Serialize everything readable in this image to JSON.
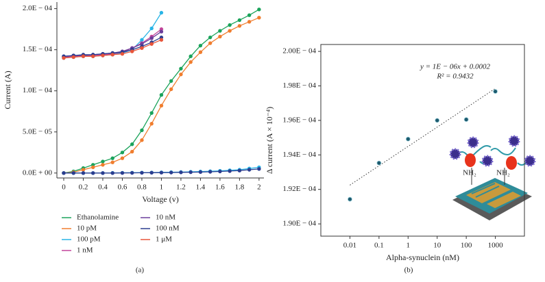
{
  "chart_data": [
    {
      "type": "line",
      "panel_label": "(a)",
      "x_label": "Voltage (v)",
      "y_label": "Current (A)",
      "x": [
        0,
        0.1,
        0.2,
        0.3,
        0.4,
        0.5,
        0.6,
        0.7,
        0.8,
        0.9,
        1.0,
        1.1,
        1.2,
        1.3,
        1.4,
        1.5,
        1.6,
        1.7,
        1.8,
        1.9,
        2.0
      ],
      "xlim": [
        -0.07,
        2.05
      ],
      "xticks": [
        0,
        0.2,
        0.4,
        0.6,
        0.8,
        1,
        1.2,
        1.4,
        1.6,
        1.8,
        2
      ],
      "ylim": [
        -6e-06,
        0.000208
      ],
      "yticks": [
        {
          "value": 0,
          "label": "0.0E + 00"
        },
        {
          "value": 5e-05,
          "label": "5.0E − 05"
        },
        {
          "value": 0.0001,
          "label": "1.0E − 04"
        },
        {
          "value": 0.00015,
          "label": "1.5E − 04"
        },
        {
          "value": 0.0002,
          "label": "2.0E − 04"
        }
      ],
      "series": [
        {
          "name": "Ethanolamine",
          "color": "#1aa35a",
          "values": [
            0,
            2e-06,
            6e-06,
            1e-05,
            1.4e-05,
            1.8e-05,
            2.5e-05,
            3.5e-05,
            5.2e-05,
            7.3e-05,
            9.5e-05,
            0.000112,
            0.000127,
            0.000142,
            0.000155,
            0.000165,
            0.000173,
            0.00018,
            0.000186,
            0.000192,
            0.000199
          ]
        },
        {
          "name": "10 pM",
          "color": "#f07d2e",
          "values": [
            0,
            1e-06,
            4e-06,
            7e-06,
            1e-05,
            1.3e-05,
            1.8e-05,
            2.6e-05,
            4e-05,
            6e-05,
            8.2e-05,
            0.000102,
            0.00012,
            0.000135,
            0.000147,
            0.000158,
            0.000166,
            0.000173,
            0.000179,
            0.000184,
            0.000189
          ]
        },
        {
          "name": "100 pM",
          "color": "#28b4e6",
          "values": [
            0.00014,
            0.000141,
            0.000142,
            0.000142,
            0.000143,
            0.000144,
            0.000146,
            0.00015,
            0.000162,
            0.000176,
            0.000195,
            null,
            null,
            null,
            null,
            null,
            null,
            null,
            null,
            null,
            null
          ]
        },
        {
          "name": "1 nM",
          "color": "#c2449a",
          "values": [
            0.000141,
            0.000142,
            0.000143,
            0.000143,
            0.000144,
            0.000145,
            0.000147,
            0.000152,
            0.000158,
            0.000166,
            0.000175,
            null,
            null,
            null,
            null,
            null,
            null,
            null,
            null,
            null,
            null
          ]
        },
        {
          "name": "10 nM",
          "color": "#6a3d9a",
          "values": [
            0.000142,
            0.000143,
            0.000143,
            0.000144,
            0.000145,
            0.000146,
            0.000148,
            0.000152,
            0.000157,
            0.000164,
            0.000172,
            null,
            null,
            null,
            null,
            null,
            null,
            null,
            null,
            null,
            null
          ]
        },
        {
          "name": "100 nM",
          "color": "#2b3d8f",
          "values": [
            0.000142,
            0.000143,
            0.000144,
            0.000144,
            0.000145,
            0.000146,
            0.000147,
            0.00015,
            0.000154,
            0.000159,
            0.000165,
            null,
            null,
            null,
            null,
            null,
            null,
            null,
            null,
            null,
            null
          ]
        },
        {
          "name": "1 μM",
          "color": "#e8553a",
          "values": [
            0.00014,
            0.000141,
            0.000142,
            0.000142,
            0.000143,
            0.000144,
            0.000145,
            0.000148,
            0.000152,
            0.000157,
            0.000162,
            null,
            null,
            null,
            null,
            null,
            null,
            null,
            null,
            null,
            null
          ]
        },
        {
          "color": "#28b4e6",
          "values": [
            0,
            0,
            0,
            0,
            0,
            2e-07,
            3e-07,
            4e-07,
            5e-07,
            6e-07,
            8e-07,
            1e-06,
            1.2e-06,
            1.5e-06,
            1.8e-06,
            2.2e-06,
            2.7e-06,
            3.3e-06,
            4e-06,
            5.5e-06,
            7e-06
          ]
        },
        {
          "color": "#2b3d8f",
          "values": [
            0,
            0,
            0,
            0,
            0,
            0,
            1e-07,
            2e-07,
            3e-07,
            4e-07,
            5e-07,
            6e-07,
            8e-07,
            1e-06,
            1.2e-06,
            1.5e-06,
            1.9e-06,
            2.4e-06,
            3e-06,
            4e-06,
            5e-06
          ]
        }
      ]
    },
    {
      "type": "scatter",
      "panel_label": "(b)",
      "x_label": "Alpha-synuclein (nM)",
      "y_label": "Δ current (A × 10⁻⁴)",
      "xscale": "log",
      "xlim": [
        0.001,
        10000
      ],
      "xticks": [
        0.01,
        0.1,
        1,
        10,
        100,
        1000
      ],
      "ylim": [
        0.00018929,
        0.0002004
      ],
      "yticks": [
        {
          "value": 0.00019,
          "label": "1.90E − 04"
        },
        {
          "value": 0.000192,
          "label": "1.92E − 04"
        },
        {
          "value": 0.000194,
          "label": "1.94E − 04"
        },
        {
          "value": 0.000196,
          "label": "1.96E − 04"
        },
        {
          "value": 0.000198,
          "label": "1.98E − 04"
        },
        {
          "value": 0.0002,
          "label": "2.00E − 04"
        }
      ],
      "color": "#1d5a6e",
      "x": [
        0.01,
        0.1,
        1,
        10,
        100,
        1000
      ],
      "values": [
        0.00019143,
        0.00019353,
        0.00019492,
        0.000196,
        0.00019605,
        0.00019768
      ],
      "trendline": {
        "x": [
          0.01,
          1000
        ],
        "y": [
          0.00019225,
          0.00019785
        ]
      },
      "annotations": [
        "y = 1E − 06x + 0.0002",
        "R² = 0.9432",
        "NH₂",
        "NH₂"
      ]
    }
  ]
}
